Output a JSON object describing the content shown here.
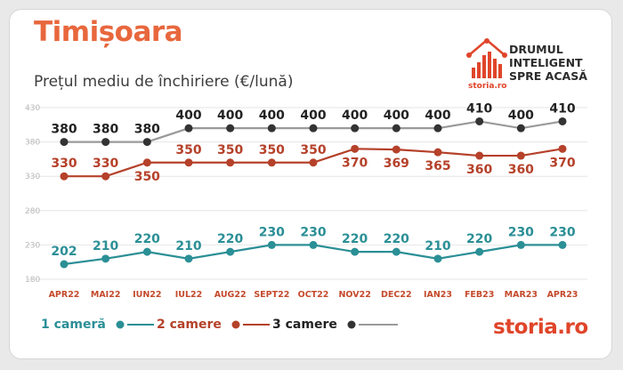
{
  "header": {
    "city": "Timișoara",
    "subtitle": "Prețul mediu de închiriere (€/lună)"
  },
  "brand": {
    "slogan_lines": [
      "DRUMUL",
      "INTELIGENT",
      "SPRE ACASĂ"
    ],
    "logo_small": "storia.ro",
    "footer_logo_main": "storia",
    "footer_logo_tld": ".ro"
  },
  "colors": {
    "accent": "#e8673d",
    "series_1": "#2b8f96",
    "series_2": "#b5412a",
    "series_3_line": "#9a9a9a",
    "series_3_marker": "#333333",
    "series_3_label": "#222222"
  },
  "chart_data": {
    "type": "line",
    "x": [
      "APR22",
      "MAI22",
      "IUN22",
      "IUL22",
      "AUG22",
      "SEPT22",
      "OCT22",
      "NOV22",
      "DEC22",
      "IAN23",
      "FEB23",
      "MAR23",
      "APR23"
    ],
    "y_ticks": [
      180,
      230,
      280,
      330,
      380,
      430
    ],
    "ylim": [
      180,
      430
    ],
    "grid": true,
    "series": [
      {
        "name": "1 cameră",
        "values": [
          202,
          210,
          220,
          210,
          220,
          230,
          230,
          220,
          220,
          210,
          220,
          230,
          230
        ]
      },
      {
        "name": "2 camere",
        "values": [
          330,
          330,
          350,
          350,
          350,
          350,
          350,
          370,
          369,
          365,
          360,
          360,
          370
        ]
      },
      {
        "name": "3 camere",
        "values": [
          380,
          380,
          380,
          400,
          400,
          400,
          400,
          400,
          400,
          400,
          410,
          400,
          410
        ]
      }
    ]
  }
}
